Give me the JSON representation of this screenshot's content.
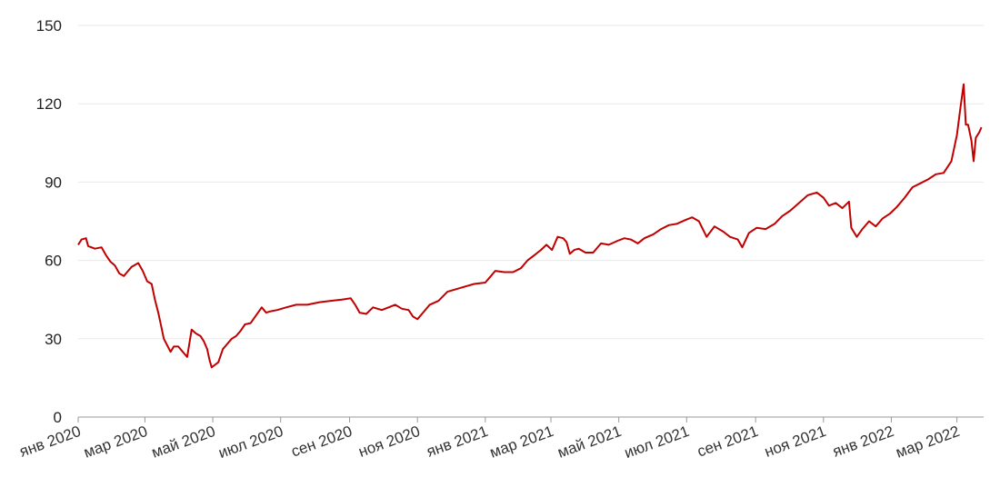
{
  "chart_data": {
    "type": "line",
    "title": "",
    "xlabel": "",
    "ylabel": "",
    "ylim": [
      0,
      150
    ],
    "y_ticks": [
      0,
      30,
      60,
      90,
      120,
      150
    ],
    "grid": true,
    "x_ticks": [
      {
        "date": "2020-01-01",
        "label": "янв 2020"
      },
      {
        "date": "2020-03-01",
        "label": "мар 2020"
      },
      {
        "date": "2020-05-01",
        "label": "май 2020"
      },
      {
        "date": "2020-07-01",
        "label": "июл 2020"
      },
      {
        "date": "2020-09-01",
        "label": "сен 2020"
      },
      {
        "date": "2020-11-01",
        "label": "ноя 2020"
      },
      {
        "date": "2021-01-01",
        "label": "янв 2021"
      },
      {
        "date": "2021-03-01",
        "label": "мар 2021"
      },
      {
        "date": "2021-05-01",
        "label": "май 2021"
      },
      {
        "date": "2021-07-01",
        "label": "июл 2021"
      },
      {
        "date": "2021-09-01",
        "label": "сен 2021"
      },
      {
        "date": "2021-11-01",
        "label": "ноя 2021"
      },
      {
        "date": "2022-01-01",
        "label": "янв 2022"
      },
      {
        "date": "2022-03-01",
        "label": "мар 2022"
      }
    ],
    "xlim": [
      "2020-01-01",
      "2022-03-25"
    ],
    "line_color": "#c00000",
    "series": [
      {
        "points": [
          [
            "2020-01-01",
            66
          ],
          [
            "2020-01-04",
            68
          ],
          [
            "2020-01-08",
            68.5
          ],
          [
            "2020-01-10",
            65.5
          ],
          [
            "2020-01-16",
            64.5
          ],
          [
            "2020-01-22",
            65
          ],
          [
            "2020-01-26",
            62
          ],
          [
            "2020-01-30",
            59.5
          ],
          [
            "2020-02-03",
            58
          ],
          [
            "2020-02-07",
            55
          ],
          [
            "2020-02-11",
            54
          ],
          [
            "2020-02-14",
            55.5
          ],
          [
            "2020-02-18",
            57.5
          ],
          [
            "2020-02-24",
            59
          ],
          [
            "2020-02-28",
            56
          ],
          [
            "2020-03-03",
            52
          ],
          [
            "2020-03-07",
            51
          ],
          [
            "2020-03-10",
            45
          ],
          [
            "2020-03-13",
            40
          ],
          [
            "2020-03-16",
            34
          ],
          [
            "2020-03-18",
            30
          ],
          [
            "2020-03-21",
            27.5
          ],
          [
            "2020-03-24",
            25
          ],
          [
            "2020-03-27",
            27
          ],
          [
            "2020-03-31",
            27
          ],
          [
            "2020-04-04",
            25
          ],
          [
            "2020-04-08",
            23
          ],
          [
            "2020-04-12",
            33.5
          ],
          [
            "2020-04-16",
            32
          ],
          [
            "2020-04-20",
            31
          ],
          [
            "2020-04-23",
            29
          ],
          [
            "2020-04-26",
            26
          ],
          [
            "2020-04-28",
            22
          ],
          [
            "2020-04-30",
            19
          ],
          [
            "2020-05-03",
            20
          ],
          [
            "2020-05-06",
            21
          ],
          [
            "2020-05-10",
            26
          ],
          [
            "2020-05-14",
            28
          ],
          [
            "2020-05-18",
            30
          ],
          [
            "2020-05-22",
            31
          ],
          [
            "2020-05-26",
            33
          ],
          [
            "2020-05-30",
            35.5
          ],
          [
            "2020-06-04",
            36
          ],
          [
            "2020-06-09",
            39
          ],
          [
            "2020-06-14",
            42
          ],
          [
            "2020-06-18",
            40
          ],
          [
            "2020-06-22",
            40.5
          ],
          [
            "2020-06-28",
            41
          ],
          [
            "2020-07-06",
            42
          ],
          [
            "2020-07-15",
            43
          ],
          [
            "2020-07-25",
            43
          ],
          [
            "2020-08-05",
            44
          ],
          [
            "2020-08-15",
            44.5
          ],
          [
            "2020-08-25",
            45
          ],
          [
            "2020-09-02",
            45.5
          ],
          [
            "2020-09-06",
            43
          ],
          [
            "2020-09-10",
            40
          ],
          [
            "2020-09-16",
            39.5
          ],
          [
            "2020-09-22",
            42
          ],
          [
            "2020-09-30",
            41
          ],
          [
            "2020-10-06",
            42
          ],
          [
            "2020-10-12",
            43
          ],
          [
            "2020-10-18",
            41.5
          ],
          [
            "2020-10-24",
            41
          ],
          [
            "2020-10-28",
            38.5
          ],
          [
            "2020-11-01",
            37.5
          ],
          [
            "2020-11-06",
            40
          ],
          [
            "2020-11-12",
            43
          ],
          [
            "2020-11-20",
            44.5
          ],
          [
            "2020-11-28",
            48
          ],
          [
            "2020-12-06",
            49
          ],
          [
            "2020-12-14",
            50
          ],
          [
            "2020-12-22",
            51
          ],
          [
            "2021-01-01",
            51.5
          ],
          [
            "2021-01-06",
            54
          ],
          [
            "2021-01-10",
            56
          ],
          [
            "2021-01-18",
            55.5
          ],
          [
            "2021-01-26",
            55.5
          ],
          [
            "2021-02-02",
            57
          ],
          [
            "2021-02-08",
            60
          ],
          [
            "2021-02-14",
            62
          ],
          [
            "2021-02-20",
            64
          ],
          [
            "2021-02-25",
            66
          ],
          [
            "2021-03-02",
            64
          ],
          [
            "2021-03-07",
            69
          ],
          [
            "2021-03-12",
            68.5
          ],
          [
            "2021-03-15",
            67
          ],
          [
            "2021-03-18",
            62.5
          ],
          [
            "2021-03-22",
            64
          ],
          [
            "2021-03-26",
            64.5
          ],
          [
            "2021-04-01",
            63
          ],
          [
            "2021-04-08",
            63
          ],
          [
            "2021-04-15",
            66.5
          ],
          [
            "2021-04-22",
            66
          ],
          [
            "2021-04-30",
            67.5
          ],
          [
            "2021-05-06",
            68.5
          ],
          [
            "2021-05-12",
            68
          ],
          [
            "2021-05-18",
            66.5
          ],
          [
            "2021-05-24",
            68.5
          ],
          [
            "2021-06-01",
            70
          ],
          [
            "2021-06-08",
            72
          ],
          [
            "2021-06-15",
            73.5
          ],
          [
            "2021-06-22",
            74
          ],
          [
            "2021-06-30",
            75.5
          ],
          [
            "2021-07-06",
            76.5
          ],
          [
            "2021-07-12",
            75
          ],
          [
            "2021-07-19",
            69
          ],
          [
            "2021-07-26",
            73
          ],
          [
            "2021-08-03",
            71
          ],
          [
            "2021-08-09",
            69
          ],
          [
            "2021-08-16",
            68
          ],
          [
            "2021-08-20",
            65
          ],
          [
            "2021-08-26",
            70.5
          ],
          [
            "2021-09-02",
            72.5
          ],
          [
            "2021-09-10",
            72
          ],
          [
            "2021-09-18",
            74
          ],
          [
            "2021-09-25",
            77
          ],
          [
            "2021-10-02",
            79
          ],
          [
            "2021-10-10",
            82
          ],
          [
            "2021-10-18",
            85
          ],
          [
            "2021-10-26",
            86
          ],
          [
            "2021-11-01",
            84
          ],
          [
            "2021-11-06",
            81
          ],
          [
            "2021-11-12",
            82
          ],
          [
            "2021-11-18",
            80
          ],
          [
            "2021-11-24",
            82.5
          ],
          [
            "2021-11-26",
            72.5
          ],
          [
            "2021-12-01",
            69
          ],
          [
            "2021-12-06",
            72
          ],
          [
            "2021-12-12",
            75
          ],
          [
            "2021-12-18",
            73
          ],
          [
            "2021-12-24",
            76
          ],
          [
            "2021-12-31",
            78
          ],
          [
            "2022-01-06",
            80.5
          ],
          [
            "2022-01-13",
            84
          ],
          [
            "2022-01-20",
            88
          ],
          [
            "2022-01-27",
            89.5
          ],
          [
            "2022-02-03",
            91
          ],
          [
            "2022-02-10",
            93
          ],
          [
            "2022-02-17",
            93.5
          ],
          [
            "2022-02-24",
            98
          ],
          [
            "2022-03-01",
            108
          ],
          [
            "2022-03-04",
            118
          ],
          [
            "2022-03-07",
            127.5
          ],
          [
            "2022-03-09",
            112
          ],
          [
            "2022-03-11",
            112
          ],
          [
            "2022-03-14",
            106
          ],
          [
            "2022-03-16",
            98
          ],
          [
            "2022-03-18",
            107
          ],
          [
            "2022-03-21",
            109
          ],
          [
            "2022-03-23",
            111
          ]
        ]
      }
    ]
  }
}
